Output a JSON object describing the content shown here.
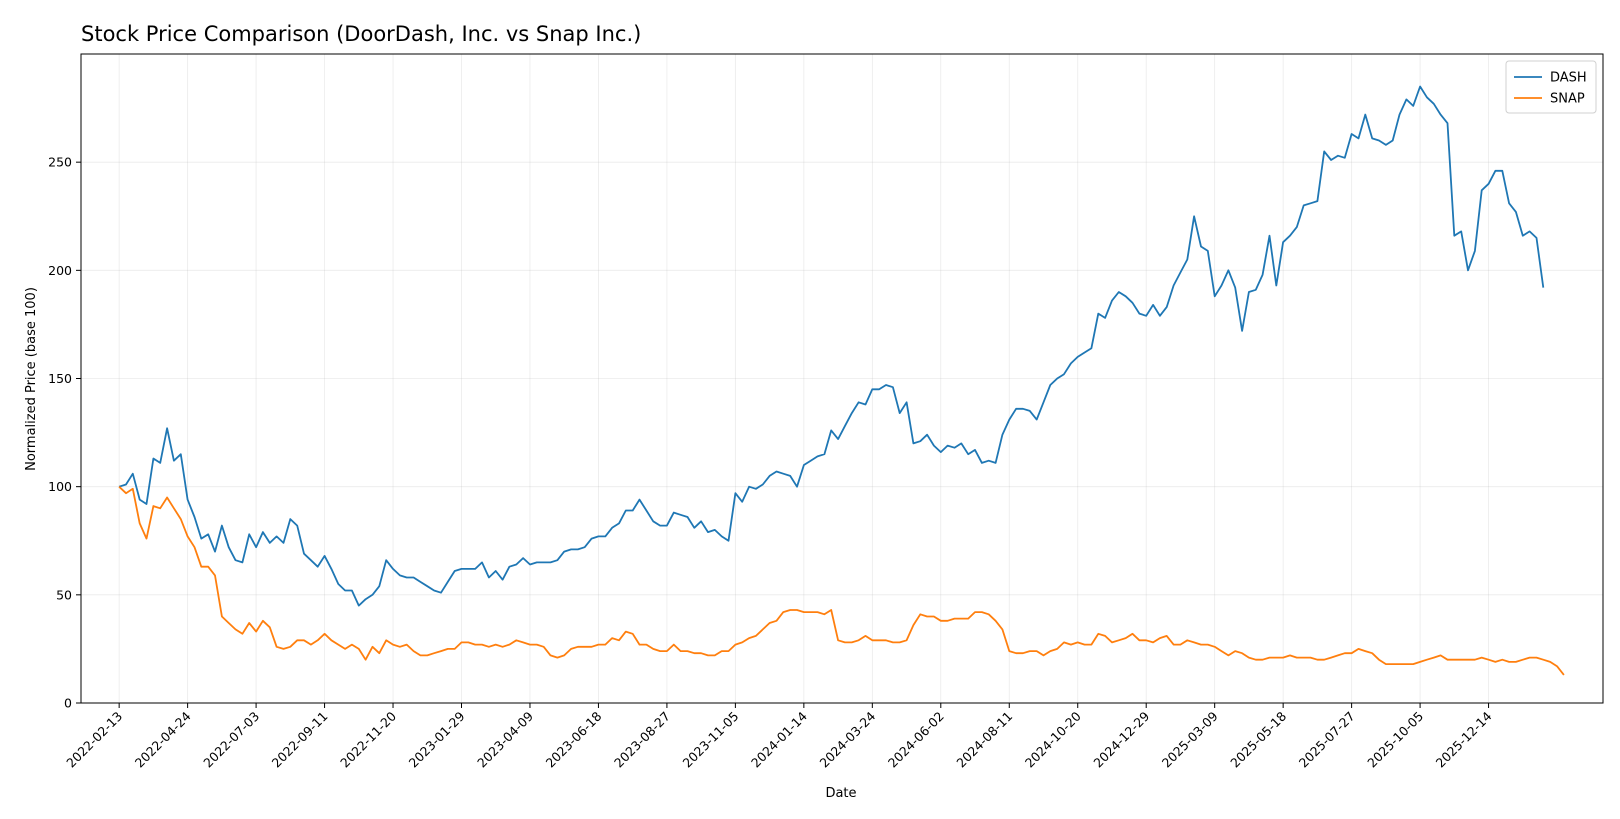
{
  "chart_data": {
    "type": "line",
    "title": "Stock Price Comparison (DoorDash, Inc. vs Snap Inc.)",
    "xlabel": "Date",
    "ylabel": "Normalized Price (base 100)",
    "x_start": "2022-02-13",
    "x_step_days": 7,
    "xlim": [
      "2022-01-05",
      "2026-04-10"
    ],
    "ylim": [
      0,
      300
    ],
    "y_ticks": [
      0,
      50,
      100,
      150,
      200,
      250
    ],
    "x_ticks": [
      "2022-02-13",
      "2022-04-24",
      "2022-07-03",
      "2022-09-11",
      "2022-11-20",
      "2023-01-29",
      "2023-04-09",
      "2023-06-18",
      "2023-08-27",
      "2023-11-05",
      "2024-01-14",
      "2024-03-24",
      "2024-06-02",
      "2024-08-11",
      "2024-10-20",
      "2024-12-29",
      "2025-03-09",
      "2025-05-18",
      "2025-07-27",
      "2025-10-05",
      "2025-12-14"
    ],
    "grid": true,
    "legend_position": "top-right",
    "series": [
      {
        "name": "DASH",
        "color": "#1f77b4",
        "values": [
          100,
          101,
          106,
          94,
          92,
          113,
          111,
          127,
          112,
          115,
          94,
          86,
          76,
          78,
          70,
          82,
          72,
          66,
          65,
          78,
          72,
          79,
          74,
          77,
          74,
          85,
          82,
          69,
          66,
          63,
          68,
          62,
          55,
          52,
          52,
          45,
          48,
          50,
          54,
          66,
          62,
          59,
          58,
          58,
          56,
          54,
          52,
          51,
          56,
          61,
          62,
          62,
          62,
          65,
          58,
          61,
          57,
          63,
          64,
          67,
          64,
          65,
          65,
          65,
          66,
          70,
          71,
          71,
          72,
          76,
          77,
          77,
          81,
          83,
          89,
          89,
          94,
          89,
          84,
          82,
          82,
          88,
          87,
          86,
          81,
          84,
          79,
          80,
          77,
          75,
          97,
          93,
          100,
          99,
          101,
          105,
          107,
          106,
          105,
          100,
          110,
          112,
          114,
          115,
          126,
          122,
          128,
          134,
          139,
          138,
          145,
          145,
          147,
          146,
          134,
          139,
          120,
          121,
          124,
          119,
          116,
          119,
          118,
          120,
          115,
          117,
          111,
          112,
          111,
          124,
          131,
          136,
          136,
          135,
          131,
          139,
          147,
          150,
          152,
          157,
          160,
          162,
          164,
          180,
          178,
          186,
          190,
          188,
          185,
          180,
          179,
          184,
          179,
          183,
          193,
          199,
          205,
          225,
          211,
          209,
          188,
          193,
          200,
          192,
          172,
          190,
          191,
          198,
          216,
          193,
          213,
          216,
          220,
          230,
          231,
          232,
          255,
          251,
          253,
          252,
          263,
          261,
          272,
          261,
          260,
          258,
          260,
          272,
          279,
          276,
          285,
          280,
          277,
          272,
          268,
          216,
          218,
          200,
          209,
          237,
          240,
          246,
          246,
          231,
          227,
          216,
          218,
          215,
          192
        ]
      },
      {
        "name": "SNAP",
        "color": "#ff7f0e",
        "values": [
          100,
          97,
          99,
          83,
          76,
          91,
          90,
          95,
          90,
          85,
          77,
          72,
          63,
          63,
          59,
          40,
          37,
          34,
          32,
          37,
          33,
          38,
          35,
          26,
          25,
          26,
          29,
          29,
          27,
          29,
          32,
          29,
          27,
          25,
          27,
          25,
          20,
          26,
          23,
          29,
          27,
          26,
          27,
          24,
          22,
          22,
          23,
          24,
          25,
          25,
          28,
          28,
          27,
          27,
          26,
          27,
          26,
          27,
          29,
          28,
          27,
          27,
          26,
          22,
          21,
          22,
          25,
          26,
          26,
          26,
          27,
          27,
          30,
          29,
          33,
          32,
          27,
          27,
          25,
          24,
          24,
          27,
          24,
          24,
          23,
          23,
          22,
          22,
          24,
          24,
          27,
          28,
          30,
          31,
          34,
          37,
          38,
          42,
          43,
          43,
          42,
          42,
          42,
          41,
          43,
          29,
          28,
          28,
          29,
          31,
          29,
          29,
          29,
          28,
          28,
          29,
          36,
          41,
          40,
          40,
          38,
          38,
          39,
          39,
          39,
          42,
          42,
          41,
          38,
          34,
          24,
          23,
          23,
          24,
          24,
          22,
          24,
          25,
          28,
          27,
          28,
          27,
          27,
          32,
          31,
          28,
          29,
          30,
          32,
          29,
          29,
          28,
          30,
          31,
          27,
          27,
          29,
          28,
          27,
          27,
          26,
          24,
          22,
          24,
          23,
          21,
          20,
          20,
          21,
          21,
          21,
          22,
          21,
          21,
          21,
          20,
          20,
          21,
          22,
          23,
          23,
          25,
          24,
          23,
          20,
          18,
          18,
          18,
          18,
          18,
          19,
          20,
          21,
          22,
          20,
          20,
          20,
          20,
          20,
          21,
          20,
          19,
          20,
          19,
          19,
          20,
          21,
          21,
          20,
          19,
          17,
          13
        ]
      }
    ]
  }
}
